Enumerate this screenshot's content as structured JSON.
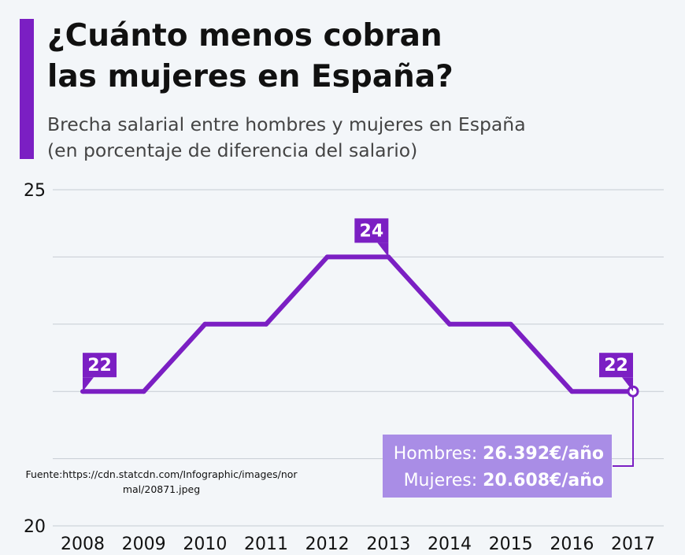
{
  "title_lines": [
    "¿Cuánto menos cobran",
    "las mujeres en España?"
  ],
  "subtitle_lines": [
    "Brecha salarial entre hombres y mujeres en España",
    "(en porcentaje de diferencia del salario)"
  ],
  "chart_data": {
    "type": "line",
    "x": [
      "2008",
      "2009",
      "2010",
      "2011",
      "2012",
      "2013",
      "2014",
      "2015",
      "2016",
      "2017"
    ],
    "values": [
      22,
      22,
      23,
      23,
      24,
      24,
      23,
      23,
      22,
      22
    ],
    "ylim": [
      20,
      25
    ],
    "yticks_labeled": [
      "25",
      "20"
    ],
    "grid": true,
    "data_labels": [
      {
        "x": "2008",
        "text": "22"
      },
      {
        "x": "2013",
        "text": "24"
      },
      {
        "x": "2017",
        "text": "22"
      }
    ]
  },
  "colors": {
    "accent": "#7b1fc3",
    "info_box": "#a98de6",
    "background": "#f3f6f9"
  },
  "info_box": {
    "hombres_label": "Hombres: ",
    "hombres_value": "26.392€/año",
    "mujeres_label": "Mujeres: ",
    "mujeres_value": "20.608€/año"
  },
  "source_lines": [
    "Fuente:https://cdn.statcdn.com/Infographic/images/nor",
    "mal/20871.jpeg"
  ]
}
